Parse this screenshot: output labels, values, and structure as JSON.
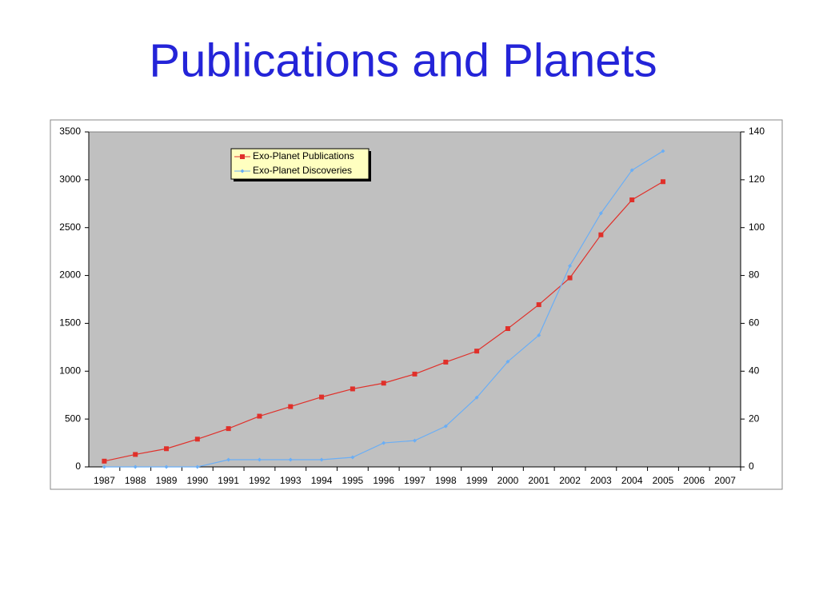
{
  "chart_data": {
    "type": "line",
    "title": "Publications and Planets",
    "categories": [
      "1987",
      "1988",
      "1989",
      "1990",
      "1991",
      "1992",
      "1993",
      "1994",
      "1995",
      "1996",
      "1997",
      "1998",
      "1999",
      "2000",
      "2001",
      "2002",
      "2003",
      "2004",
      "2005",
      "2006",
      "2007"
    ],
    "series": [
      {
        "name": "Exo-Planet Publications",
        "color": "#e0302a",
        "axis": "y",
        "values": [
          60,
          130,
          190,
          290,
          400,
          530,
          630,
          730,
          815,
          875,
          970,
          1095,
          1210,
          1445,
          1695,
          1975,
          2425,
          2790,
          2980,
          null,
          null
        ]
      },
      {
        "name": "Exo-Planet Discoveries",
        "color": "#6aaef5",
        "axis": "y2",
        "values": [
          0,
          0,
          0,
          0,
          3,
          3,
          3,
          3,
          4,
          10,
          11,
          17,
          29,
          44,
          55,
          84,
          106,
          124,
          132,
          null,
          null
        ]
      }
    ],
    "ylim": [
      0,
      3500
    ],
    "yticks": [
      0,
      500,
      1000,
      1500,
      2000,
      2500,
      3000,
      3500
    ],
    "y2lim": [
      0,
      140
    ],
    "y2ticks": [
      0,
      20,
      40,
      60,
      80,
      100,
      120,
      140
    ],
    "grid": false,
    "plot_color": "#c0c0c0",
    "legend_color": "#ffffc0"
  }
}
